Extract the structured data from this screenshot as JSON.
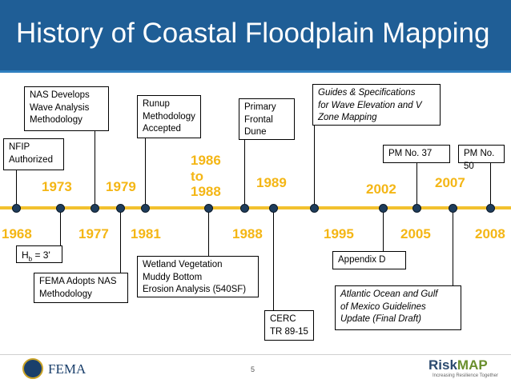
{
  "slide": {
    "title": "History of Coastal Floodplain Mapping",
    "page_number": "5"
  },
  "years": [
    {
      "id": "1968",
      "label": "1968"
    },
    {
      "id": "1973",
      "label": "1973"
    },
    {
      "id": "1977",
      "label": "1977"
    },
    {
      "id": "1979",
      "label": "1979"
    },
    {
      "id": "1981",
      "label": "1981"
    },
    {
      "id": "1986",
      "label": "1986\nto\n1988"
    },
    {
      "id": "1988",
      "label": "1988"
    },
    {
      "id": "1989",
      "label": "1989"
    },
    {
      "id": "1995",
      "label": "1995"
    },
    {
      "id": "2002",
      "label": "2002"
    },
    {
      "id": "2005",
      "label": "2005"
    },
    {
      "id": "2007",
      "label": "2007"
    },
    {
      "id": "2008",
      "label": "2008"
    }
  ],
  "events": [
    {
      "id": "nfip",
      "text": "NFIP\nAuthorized"
    },
    {
      "id": "hb",
      "text": "Hb = 3'"
    },
    {
      "id": "nas-develops",
      "text": "NAS Develops\nWave Analysis\nMethodology"
    },
    {
      "id": "fema-adopts",
      "text": "FEMA Adopts NAS\nMethodology"
    },
    {
      "id": "runup",
      "text": "Runup\nMethodology\nAccepted"
    },
    {
      "id": "wetland",
      "text": "Wetland Vegetation\nMuddy Bottom\nErosion Analysis (540SF)"
    },
    {
      "id": "primary-dune",
      "text": "Primary\nFrontal\nDune"
    },
    {
      "id": "cerc",
      "text": "CERC\nTR 89-15"
    },
    {
      "id": "guides",
      "text": "Guides & Specifications\nfor Wave Elevation and V\nZone Mapping"
    },
    {
      "id": "appendix-d",
      "text": "Appendix D"
    },
    {
      "id": "pm37",
      "text": "PM No. 37"
    },
    {
      "id": "atlantic",
      "text": "Atlantic Ocean and Gulf\nof Mexico Guidelines\nUpdate (Final Draft)"
    },
    {
      "id": "pm50",
      "text": "PM No. 50"
    }
  ],
  "footer": {
    "agency": "FEMA",
    "brand_risk": "Risk",
    "brand_map": "MAP",
    "tagline": "Increasing Resilience Together"
  },
  "colors": {
    "header": "#1f5e96",
    "year_text": "#f4b615",
    "axis": "#f2c12e",
    "marker": "#1f3d5c"
  }
}
